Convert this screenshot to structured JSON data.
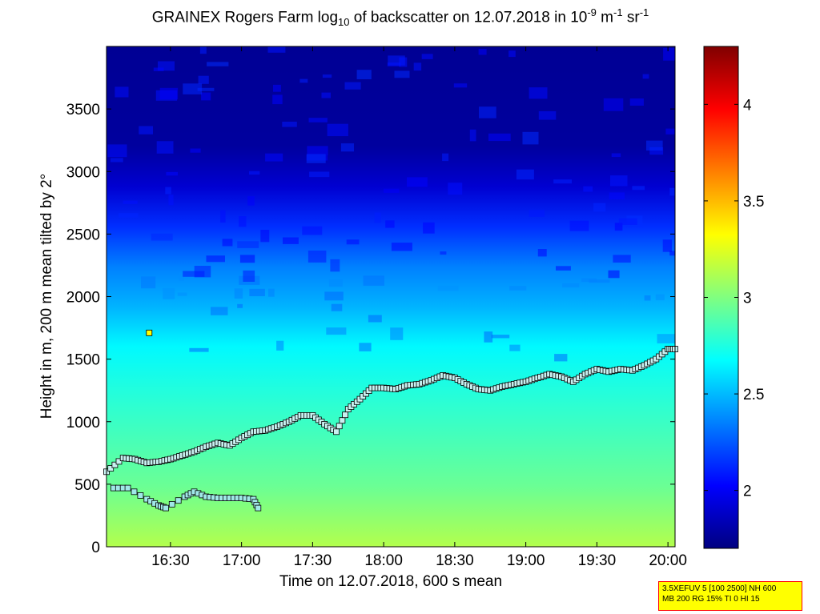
{
  "chart_data": {
    "type": "heatmap",
    "title": {
      "prefix": "GRAINEX Rogers Farm log",
      "log_base": "10",
      "middle": " of backscatter on 12.07.2018 in 10",
      "exp1": "-9",
      "unit_m": " m",
      "exp2": "-1",
      "unit_sr": " sr",
      "exp3": "-1"
    },
    "xlabel": "Time on 12.07.2018, 600 s mean",
    "ylabel": "Height in m, 200 m mean tilted by 2°",
    "x_range": [
      "16:03",
      "20:03"
    ],
    "y_range": [
      0,
      4000
    ],
    "x_tick_labels": [
      "16:30",
      "17:00",
      "17:30",
      "18:00",
      "18:30",
      "19:00",
      "19:30",
      "20:00"
    ],
    "y_tick_labels": [
      "0",
      "500",
      "1000",
      "1500",
      "2000",
      "2500",
      "3000",
      "3500"
    ],
    "colorbar": {
      "range": [
        1.7,
        4.3
      ],
      "tick_labels": [
        "2",
        "2.5",
        "3",
        "3.5",
        "4"
      ],
      "colormap": "jet"
    },
    "boundary_layer_height": {
      "marker": "square",
      "x": [
        "16:03",
        "16:10",
        "16:15",
        "16:20",
        "16:25",
        "16:30",
        "16:35",
        "16:40",
        "16:45",
        "16:50",
        "16:55",
        "17:00",
        "17:05",
        "17:10",
        "17:15",
        "17:20",
        "17:25",
        "17:30",
        "17:35",
        "17:40",
        "17:45",
        "17:50",
        "17:55",
        "18:00",
        "18:05",
        "18:10",
        "18:15",
        "18:20",
        "18:25",
        "18:30",
        "18:35",
        "18:40",
        "18:45",
        "18:50",
        "18:55",
        "19:00",
        "19:05",
        "19:10",
        "19:15",
        "19:20",
        "19:25",
        "19:30",
        "19:35",
        "19:40",
        "19:45",
        "19:50",
        "19:55",
        "20:00",
        "20:03"
      ],
      "y": [
        600,
        710,
        700,
        670,
        680,
        700,
        730,
        760,
        800,
        830,
        810,
        870,
        920,
        930,
        960,
        1000,
        1050,
        1050,
        980,
        920,
        1100,
        1180,
        1270,
        1270,
        1260,
        1290,
        1300,
        1330,
        1370,
        1350,
        1300,
        1260,
        1250,
        1280,
        1300,
        1320,
        1350,
        1380,
        1360,
        1320,
        1380,
        1420,
        1400,
        1420,
        1410,
        1450,
        1500,
        1580,
        1580
      ]
    },
    "lower_layer": {
      "marker": "square",
      "x": [
        "16:06",
        "16:12",
        "16:20",
        "16:25",
        "16:28",
        "16:36",
        "16:40",
        "16:45",
        "16:50",
        "16:55",
        "17:00",
        "17:05",
        "17:07"
      ],
      "y": [
        470,
        470,
        380,
        330,
        310,
        400,
        440,
        400,
        390,
        390,
        390,
        380,
        310
      ]
    },
    "outlier_marker": {
      "x": "16:21",
      "y": 1710,
      "color": "#ffff00"
    },
    "grid": false
  },
  "info_box": {
    "line1": "3.5XEFUV 5 [100 2500] NH 600",
    "line2": "MB 200 RG 15% TI 0 HI 15"
  }
}
